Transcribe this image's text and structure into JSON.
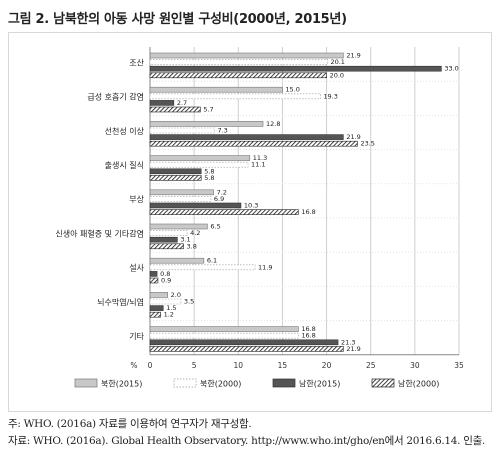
{
  "title": "그림 2.  남북한의 아동 사망 원인별 구성비(2000년,  2015년)",
  "notes": [
    "주: WHO. (2016a) 자료를 이용하여 연구자가 재구성함.",
    "자료: WHO. (2016a). Global Health Observatory. http://www.who.int/gho/en에서 2016.6.14. 인출."
  ],
  "chart_data": {
    "type": "bar",
    "orientation": "horizontal",
    "unit_label": "%",
    "xlim": [
      0,
      35
    ],
    "ticks": [
      0,
      5,
      10,
      15,
      20,
      25,
      30,
      35
    ],
    "categories": [
      "조산",
      "급성 호흡기 감염",
      "선천성 이상",
      "출생시 질식",
      "부상",
      "신생아 패혈증 및 기타감염",
      "설사",
      "뇌수막염/뇌염",
      "기타"
    ],
    "series": [
      {
        "name": "북한(2015)",
        "values": [
          21.9,
          15.0,
          12.8,
          11.3,
          7.2,
          6.5,
          6.1,
          2.0,
          16.8
        ]
      },
      {
        "name": "북한(2000)",
        "values": [
          20.1,
          19.3,
          7.3,
          11.1,
          6.9,
          4.2,
          11.9,
          3.5,
          16.8
        ]
      },
      {
        "name": "남한(2015)",
        "values": [
          33.0,
          2.7,
          21.9,
          5.8,
          10.3,
          3.1,
          0.8,
          1.5,
          21.3
        ]
      },
      {
        "name": "남한(2000)",
        "values": [
          20.0,
          5.7,
          23.5,
          5.8,
          16.8,
          3.8,
          0.9,
          1.2,
          21.9
        ]
      }
    ],
    "label_text": [
      [
        "21.9",
        "15.0",
        "12.8",
        "11.3",
        "7.2",
        "6.5",
        "6.1",
        "2.0",
        "16.8"
      ],
      [
        "20.1",
        "19.3",
        "7.3",
        "11.1",
        "6.9",
        "4.2",
        "11.9",
        "3.5",
        "16.8"
      ],
      [
        "33.0",
        "2.7",
        "21.9",
        "5.8",
        "10.3",
        "3.1",
        "0.8",
        "1.5",
        "21.3"
      ],
      [
        "20.0",
        "5.7",
        "23.5",
        "5.8",
        "16.8",
        "3.8",
        "0.9",
        "1.2",
        "21.9"
      ]
    ],
    "grid": true,
    "legend_position": "bottom",
    "colors": {
      "north2015": "#c8c8c8",
      "north2000": "#ffffff",
      "south2015": "#555555",
      "south2000": "hatch"
    }
  }
}
